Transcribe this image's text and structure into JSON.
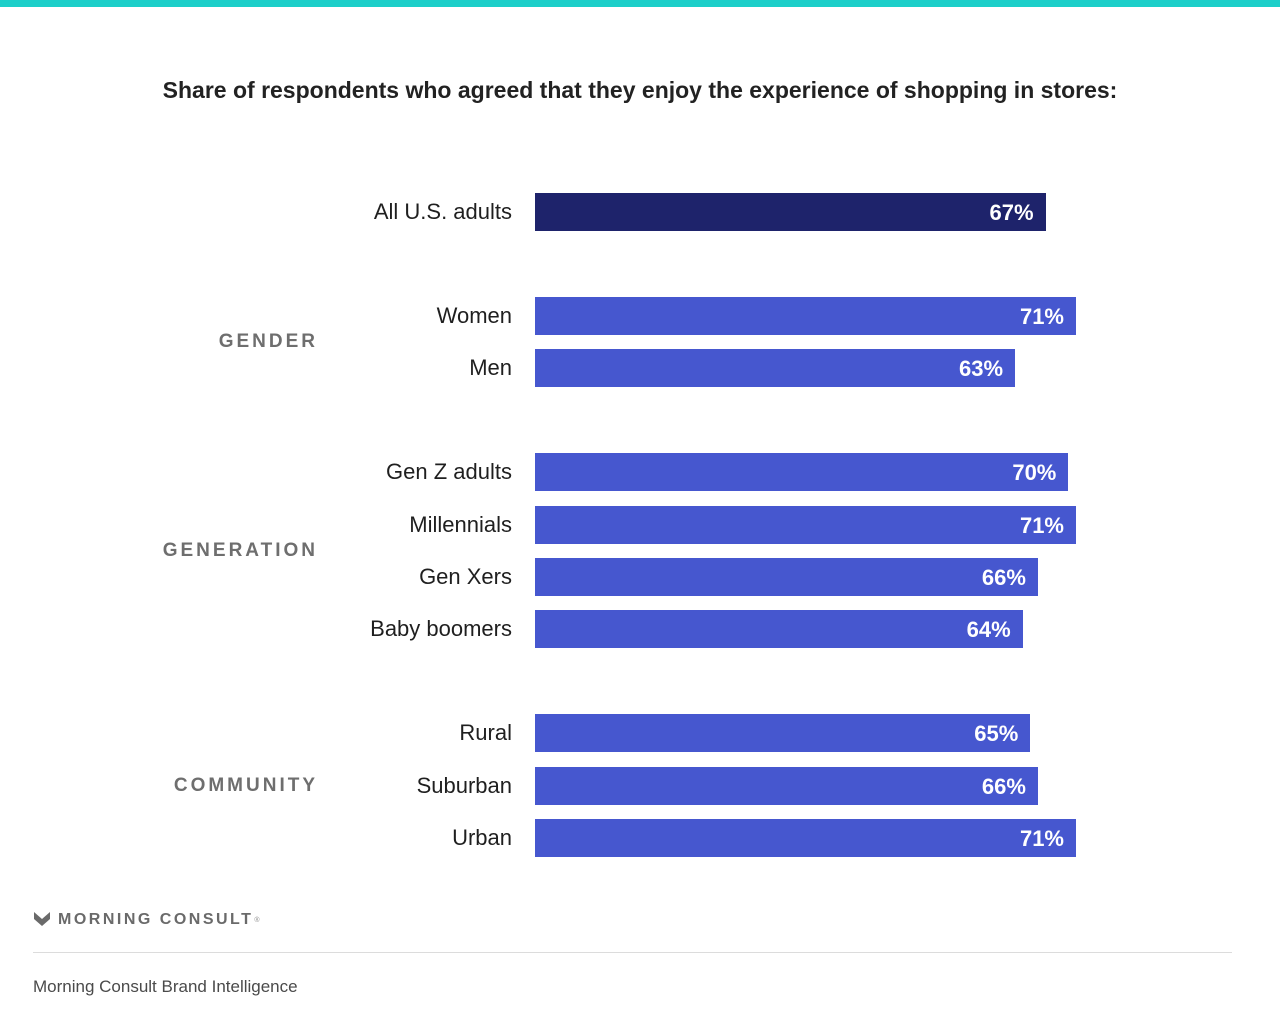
{
  "colors": {
    "top_stripe": "#1ccfc9",
    "bar_total": "#1e236b",
    "bar_segment": "#4657cf"
  },
  "title": "Share of respondents who agreed that they enjoy the experience of shopping in stores:",
  "chart_data": {
    "type": "bar",
    "orientation": "horizontal",
    "title": "Share of respondents who agreed that they enjoy the experience of shopping in stores:",
    "xlim": [
      0,
      100
    ],
    "unit": "%",
    "grid": false,
    "categories": [
      "All U.S. adults",
      "Women",
      "Men",
      "Gen Z adults",
      "Millennials",
      "Gen Xers",
      "Baby boomers",
      "Rural",
      "Suburban",
      "Urban"
    ],
    "values": [
      67,
      71,
      63,
      70,
      71,
      66,
      64,
      65,
      66,
      71
    ],
    "value_labels": [
      "67%",
      "71%",
      "63%",
      "70%",
      "71%",
      "66%",
      "64%",
      "65%",
      "66%",
      "71%"
    ],
    "groups": [
      {
        "name": "",
        "categories": [
          "All U.S. adults"
        ]
      },
      {
        "name": "GENDER",
        "categories": [
          "Women",
          "Men"
        ]
      },
      {
        "name": "GENERATION",
        "categories": [
          "Gen Z adults",
          "Millennials",
          "Gen Xers",
          "Baby boomers"
        ]
      },
      {
        "name": "COMMUNITY",
        "categories": [
          "Rural",
          "Suburban",
          "Urban"
        ]
      }
    ]
  },
  "brand": {
    "logo_icon": "morning-consult-chevron-icon",
    "name": "MORNING CONSULT",
    "trademark": "®"
  },
  "source": "Morning Consult Brand Intelligence"
}
